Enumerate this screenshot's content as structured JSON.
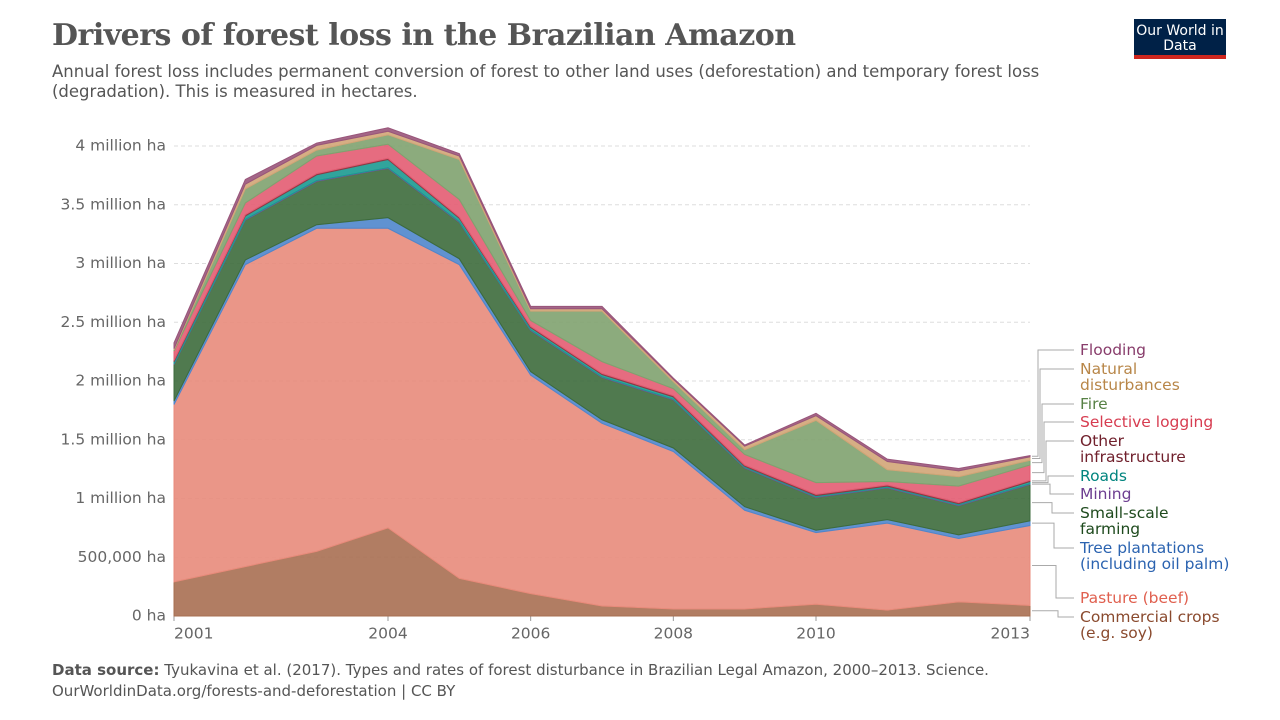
{
  "chart_data": {
    "type": "stacked-area",
    "title": "Drivers of forest loss in the Brazilian Amazon",
    "subtitle": "Annual forest loss includes permanent conversion of forest to other land uses (deforestation) and temporary forest loss (degradation). This is measured in hectares.",
    "logo": "Our World in Data",
    "source_label": "Data source:",
    "source_text": "Tyukavina et al. (2017). Types and rates of forest disturbance in Brazilian Legal Amazon, 2000–2013. Science.",
    "source_url": "OurWorldinData.org/forests-and-deforestation | CC BY",
    "x": [
      2001,
      2002,
      2003,
      2004,
      2005,
      2006,
      2007,
      2008,
      2009,
      2010,
      2011,
      2012,
      2013
    ],
    "xlim": [
      2001,
      2013
    ],
    "xticks": [
      2001,
      2004,
      2006,
      2008,
      2010,
      2013
    ],
    "ylim": [
      0,
      4.2
    ],
    "yticks": [
      {
        "value": 0,
        "label": "0 ha"
      },
      {
        "value": 0.5,
        "label": "500,000 ha"
      },
      {
        "value": 1,
        "label": "1 million ha"
      },
      {
        "value": 1.5,
        "label": "1.5 million ha"
      },
      {
        "value": 2,
        "label": "2 million ha"
      },
      {
        "value": 2.5,
        "label": "2.5 million ha"
      },
      {
        "value": 3,
        "label": "3 million ha"
      },
      {
        "value": 3.5,
        "label": "3.5 million ha"
      },
      {
        "value": 4,
        "label": "4 million ha"
      }
    ],
    "grid": true,
    "series": [
      {
        "name": "Commercial crops (e.g. soy)",
        "color": "#a86f52",
        "text_color": "#8a4a2e",
        "values": [
          0.29,
          0.42,
          0.55,
          0.75,
          0.32,
          0.19,
          0.085,
          0.06,
          0.06,
          0.1,
          0.05,
          0.12,
          0.09
        ]
      },
      {
        "name": "Pasture (beef)",
        "color": "#e88b7b",
        "text_color": "#e0604f",
        "values": [
          1.51,
          2.57,
          2.75,
          2.55,
          2.67,
          1.86,
          1.555,
          1.34,
          0.84,
          0.61,
          0.74,
          0.54,
          0.68
        ]
      },
      {
        "name": "Tree plantations (including oil palm)",
        "color": "#4f86cc",
        "text_color": "#2b63b0",
        "values": [
          0.03,
          0.04,
          0.03,
          0.09,
          0.05,
          0.03,
          0.03,
          0.03,
          0.03,
          0.02,
          0.03,
          0.03,
          0.04
        ]
      },
      {
        "name": "Small-scale farming",
        "color": "#3d6b3c",
        "text_color": "#1e4a1d",
        "values": [
          0.31,
          0.34,
          0.37,
          0.42,
          0.31,
          0.35,
          0.36,
          0.41,
          0.33,
          0.28,
          0.27,
          0.25,
          0.31
        ]
      },
      {
        "name": "Mining",
        "color": "#7a4fa0",
        "text_color": "#6d3e91",
        "values": [
          0.005,
          0.005,
          0.005,
          0.005,
          0.005,
          0.005,
          0.005,
          0.005,
          0.005,
          0.005,
          0.005,
          0.005,
          0.005
        ]
      },
      {
        "name": "Roads",
        "color": "#1b9a91",
        "text_color": "#00847e",
        "values": [
          0.02,
          0.03,
          0.05,
          0.07,
          0.03,
          0.02,
          0.02,
          0.02,
          0.01,
          0.01,
          0.01,
          0.01,
          0.02
        ]
      },
      {
        "name": "Other infrastructure",
        "color": "#8b3a44",
        "text_color": "#70202c",
        "values": [
          0.01,
          0.01,
          0.01,
          0.01,
          0.01,
          0.01,
          0.01,
          0.01,
          0.01,
          0.01,
          0.01,
          0.01,
          0.01
        ]
      },
      {
        "name": "Selective logging",
        "color": "#e35c72",
        "text_color": "#d73c50",
        "values": [
          0.08,
          0.1,
          0.15,
          0.12,
          0.15,
          0.05,
          0.1,
          0.06,
          0.09,
          0.1,
          0.03,
          0.14,
          0.13
        ]
      },
      {
        "name": "Fire",
        "color": "#7fa26f",
        "text_color": "#578145",
        "values": [
          0.01,
          0.12,
          0.05,
          0.08,
          0.34,
          0.08,
          0.43,
          0.06,
          0.04,
          0.53,
          0.1,
          0.08,
          0.04
        ]
      },
      {
        "name": "Natural disturbances",
        "color": "#d1a577",
        "text_color": "#b88648",
        "values": [
          0.01,
          0.04,
          0.04,
          0.03,
          0.03,
          0.02,
          0.02,
          0.02,
          0.03,
          0.04,
          0.07,
          0.05,
          0.03
        ]
      },
      {
        "name": "Flooding",
        "color": "#99557a",
        "text_color": "#883c6b",
        "values": [
          0.05,
          0.04,
          0.02,
          0.03,
          0.02,
          0.02,
          0.02,
          0.01,
          0.01,
          0.02,
          0.02,
          0.02,
          0.01
        ]
      }
    ]
  }
}
